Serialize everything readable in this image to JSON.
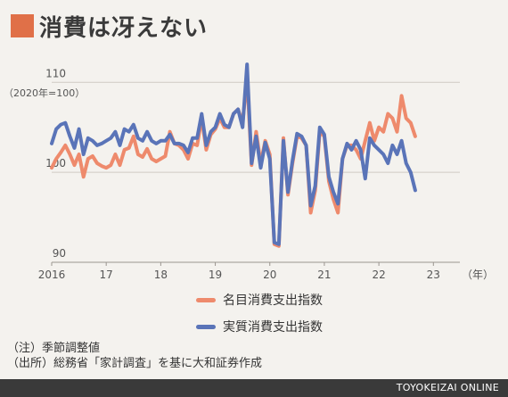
{
  "title": "消費は冴えない",
  "title_color": "#e07048",
  "unit_note": "（2020年=100）",
  "notes": [
    "（注）季節調整値",
    "（出所）総務省「家計調査」を基に大和証券作成"
  ],
  "source_brand": "TOYOKEIZAI ONLINE",
  "chart_data": {
    "type": "line",
    "x_unit": "（年）",
    "x_ticks": [
      "2016",
      "17",
      "18",
      "19",
      "20",
      "21",
      "22",
      "23"
    ],
    "y_ticks": [
      "90",
      "100",
      "110"
    ],
    "ylim": [
      90,
      113
    ],
    "xlim": [
      2016.0,
      2023.42
    ],
    "grid": "horizontal",
    "legend_position": "bottom-center",
    "x_start": 2016.0,
    "x_step_months": 1,
    "series": [
      {
        "name": "名目消費支出指数",
        "color": "#ee8a6c",
        "values": [
          100.5,
          101.5,
          102.2,
          103.0,
          102.0,
          100.8,
          102.0,
          99.5,
          101.5,
          101.8,
          101.0,
          100.7,
          100.5,
          100.8,
          102.0,
          100.8,
          102.5,
          102.7,
          104.0,
          102.0,
          101.7,
          102.6,
          101.5,
          101.2,
          101.5,
          101.8,
          104.5,
          103.2,
          103.0,
          102.5,
          101.5,
          103.2,
          103.0,
          106.0,
          102.5,
          104.2,
          104.8,
          106.0,
          105.0,
          105.0,
          106.5,
          107.0,
          105.5,
          110.5,
          100.8,
          104.5,
          101.0,
          103.5,
          102.0,
          92.0,
          91.8,
          103.8,
          97.5,
          101.0,
          104.0,
          103.8,
          103.0,
          95.5,
          98.0,
          104.5,
          104.0,
          99.0,
          97.0,
          95.5,
          101.5,
          103.0,
          103.0,
          102.5,
          101.5,
          103.5,
          105.5,
          103.5,
          105.0,
          104.5,
          106.5,
          106.0,
          104.5,
          108.5,
          106.0,
          105.5,
          104.0
        ]
      },
      {
        "name": "実質消費支出指数",
        "color": "#5a74b8",
        "values": [
          103.2,
          104.8,
          105.3,
          105.5,
          104.0,
          102.7,
          104.8,
          102.0,
          103.8,
          103.5,
          103.0,
          103.2,
          103.5,
          103.8,
          104.5,
          103.0,
          104.8,
          104.5,
          105.3,
          103.8,
          103.5,
          104.5,
          103.5,
          103.2,
          103.5,
          103.5,
          104.2,
          103.2,
          103.2,
          103.0,
          102.2,
          103.8,
          103.8,
          106.5,
          103.0,
          104.5,
          105.0,
          106.5,
          105.3,
          105.0,
          106.5,
          107.0,
          105.0,
          112.0,
          101.0,
          104.0,
          100.5,
          103.3,
          101.5,
          92.2,
          92.0,
          103.5,
          97.8,
          101.3,
          104.3,
          104.0,
          103.0,
          96.3,
          98.5,
          105.0,
          104.2,
          99.5,
          97.8,
          96.5,
          101.5,
          103.2,
          102.5,
          103.5,
          102.5,
          99.3,
          103.8,
          103.0,
          102.5,
          102.0,
          101.0,
          103.0,
          102.0,
          103.5,
          101.0,
          100.0,
          98.0
        ]
      }
    ]
  }
}
